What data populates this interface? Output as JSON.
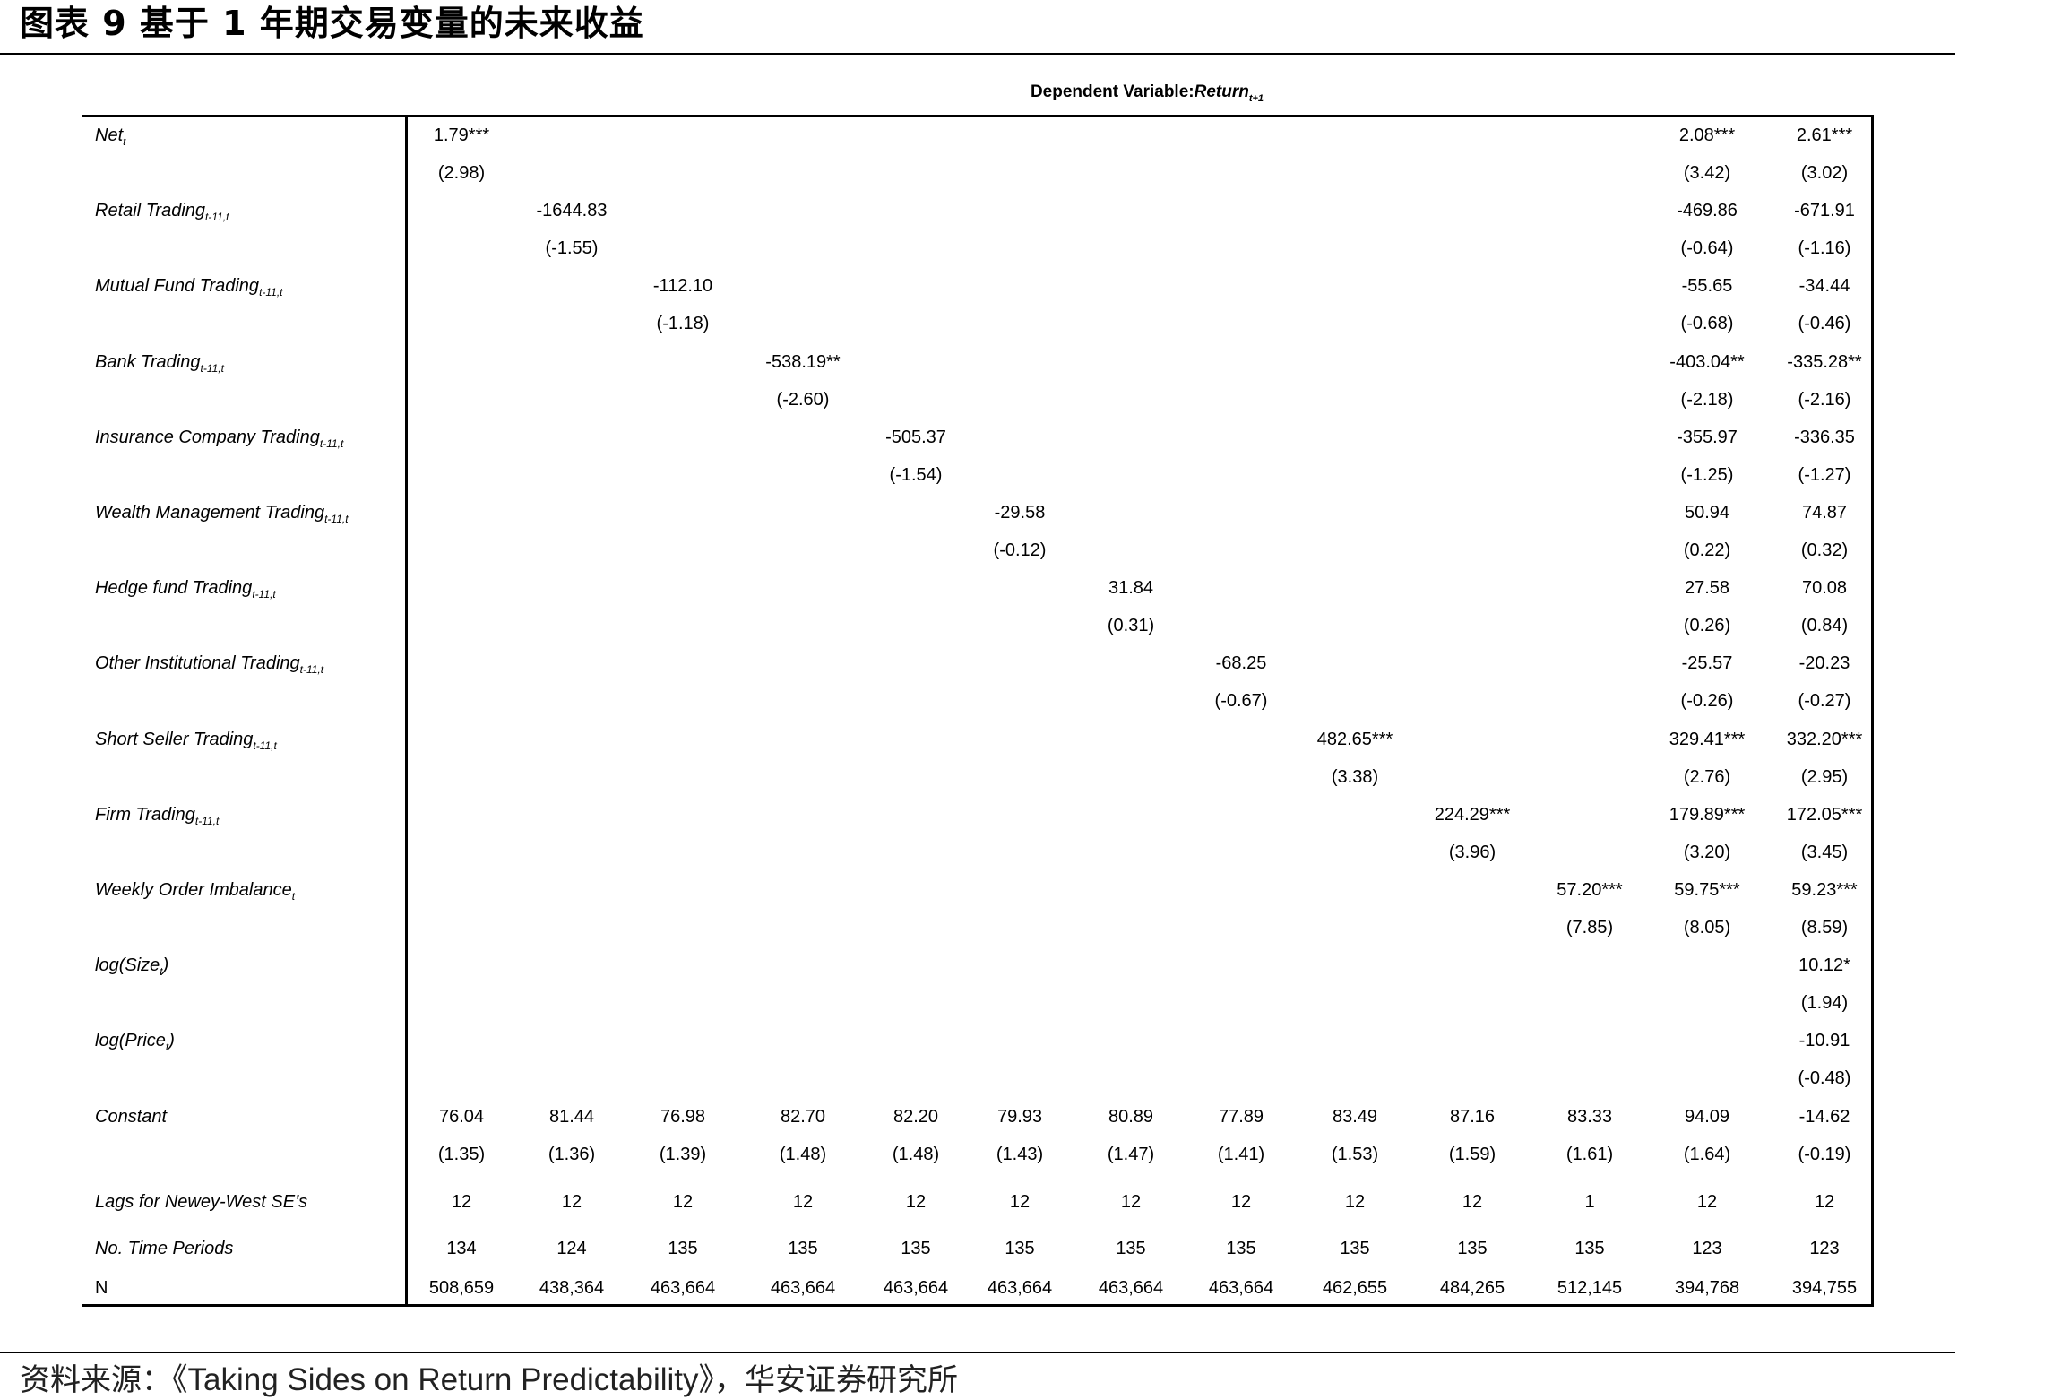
{
  "figure_title": "图表 9 基于 1 年期交易变量的未来收益",
  "dependent_variable": {
    "prefix": "Dependent Variable: ",
    "name": "Return",
    "subscript": "t+1"
  },
  "rows": [
    {
      "name": "Net",
      "sub": "t",
      "coef": {
        "1": "1.79***",
        "12": "2.08***",
        "13": "2.61***"
      },
      "t": {
        "1": "(2.98)",
        "12": "(3.42)",
        "13": "(3.02)"
      }
    },
    {
      "name": "Retail Trading",
      "sub": "t-11,t",
      "coef": {
        "2": "-1644.83",
        "12": "-469.86",
        "13": "-671.91"
      },
      "t": {
        "2": "(-1.55)",
        "12": "(-0.64)",
        "13": "(-1.16)"
      }
    },
    {
      "name": "Mutual Fund Trading",
      "sub": "t-11,t",
      "coef": {
        "3": "-112.10",
        "12": "-55.65",
        "13": "-34.44"
      },
      "t": {
        "3": "(-1.18)",
        "12": "(-0.68)",
        "13": "(-0.46)"
      }
    },
    {
      "name": "Bank Trading",
      "sub": "t-11,t",
      "coef": {
        "4": "-538.19**",
        "12": "-403.04**",
        "13": "-335.28**"
      },
      "t": {
        "4": "(-2.60)",
        "12": "(-2.18)",
        "13": "(-2.16)"
      }
    },
    {
      "name": "Insurance Company Trading",
      "sub": "t-11,t",
      "coef": {
        "5": "-505.37",
        "12": "-355.97",
        "13": "-336.35"
      },
      "t": {
        "5": "(-1.54)",
        "12": "(-1.25)",
        "13": "(-1.27)"
      }
    },
    {
      "name": "Wealth Management Trading",
      "sub": "t-11,t",
      "coef": {
        "6": "-29.58",
        "12": "50.94",
        "13": "74.87"
      },
      "t": {
        "6": "(-0.12)",
        "12": "(0.22)",
        "13": "(0.32)"
      }
    },
    {
      "name": "Hedge fund Trading",
      "sub": "t-11,t",
      "coef": {
        "7": "31.84",
        "12": "27.58",
        "13": "70.08"
      },
      "t": {
        "7": "(0.31)",
        "12": "(0.26)",
        "13": "(0.84)"
      }
    },
    {
      "name": "Other Institutional Trading",
      "sub": "t-11,t",
      "coef": {
        "8": "-68.25",
        "12": "-25.57",
        "13": "-20.23"
      },
      "t": {
        "8": "(-0.67)",
        "12": "(-0.26)",
        "13": "(-0.27)"
      }
    },
    {
      "name": "Short Seller Trading",
      "sub": "t-11,t",
      "coef": {
        "9": "482.65***",
        "12": "329.41***",
        "13": "332.20***"
      },
      "t": {
        "9": "(3.38)",
        "12": "(2.76)",
        "13": "(2.95)"
      }
    },
    {
      "name": "Firm Trading",
      "sub": "t-11,t",
      "coef": {
        "10": "224.29***",
        "12": "179.89***",
        "13": "172.05***"
      },
      "t": {
        "10": "(3.96)",
        "12": "(3.20)",
        "13": "(3.45)"
      }
    },
    {
      "name": "Weekly Order Imbalance",
      "sub": "t",
      "coef": {
        "11": "57.20***",
        "12": "59.75***",
        "13": "59.23***"
      },
      "t": {
        "11": "(7.85)",
        "12": "(8.05)",
        "13": "(8.59)"
      }
    },
    {
      "name": "log(Size",
      "sub": "t",
      "suffix": ")",
      "coef": {
        "13": "10.12*"
      },
      "t": {
        "13": "(1.94)"
      }
    },
    {
      "name": "log(Price",
      "sub": "t",
      "suffix": ")",
      "coef": {
        "13": "-10.91"
      },
      "t": {
        "13": "(-0.48)"
      }
    },
    {
      "name": "Constant",
      "sub": "",
      "coef": {
        "1": "76.04",
        "2": "81.44",
        "3": "76.98",
        "4": "82.70",
        "5": "82.20",
        "6": "79.93",
        "7": "80.89",
        "8": "77.89",
        "9": "83.49",
        "10": "87.16",
        "11": "83.33",
        "12": "94.09",
        "13": "-14.62"
      },
      "t": {
        "1": "(1.35)",
        "2": "(1.36)",
        "3": "(1.39)",
        "4": "(1.48)",
        "5": "(1.48)",
        "6": "(1.43)",
        "7": "(1.47)",
        "8": "(1.41)",
        "9": "(1.53)",
        "10": "(1.59)",
        "11": "(1.61)",
        "12": "(1.64)",
        "13": "(-0.19)"
      }
    }
  ],
  "footer_rows": [
    {
      "name": "Lags for Newey-West SE’s",
      "italic": true,
      "values": [
        "12",
        "12",
        "12",
        "12",
        "12",
        "12",
        "12",
        "12",
        "12",
        "12",
        "1",
        "12",
        "12"
      ]
    },
    {
      "name": "No. Time Periods",
      "italic": true,
      "values": [
        "134",
        "124",
        "135",
        "135",
        "135",
        "135",
        "135",
        "135",
        "135",
        "135",
        "135",
        "123",
        "123"
      ]
    },
    {
      "name": "N",
      "italic": false,
      "values": [
        "508,659",
        "438,364",
        "463,664",
        "463,664",
        "463,664",
        "463,664",
        "463,664",
        "463,664",
        "462,655",
        "484,265",
        "512,145",
        "394,768",
        "394,755"
      ]
    }
  ],
  "source": {
    "prefix": "资料来源：",
    "title": "《Taking Sides on Return Predictability》",
    "suffix": "，华安证券研究所"
  }
}
